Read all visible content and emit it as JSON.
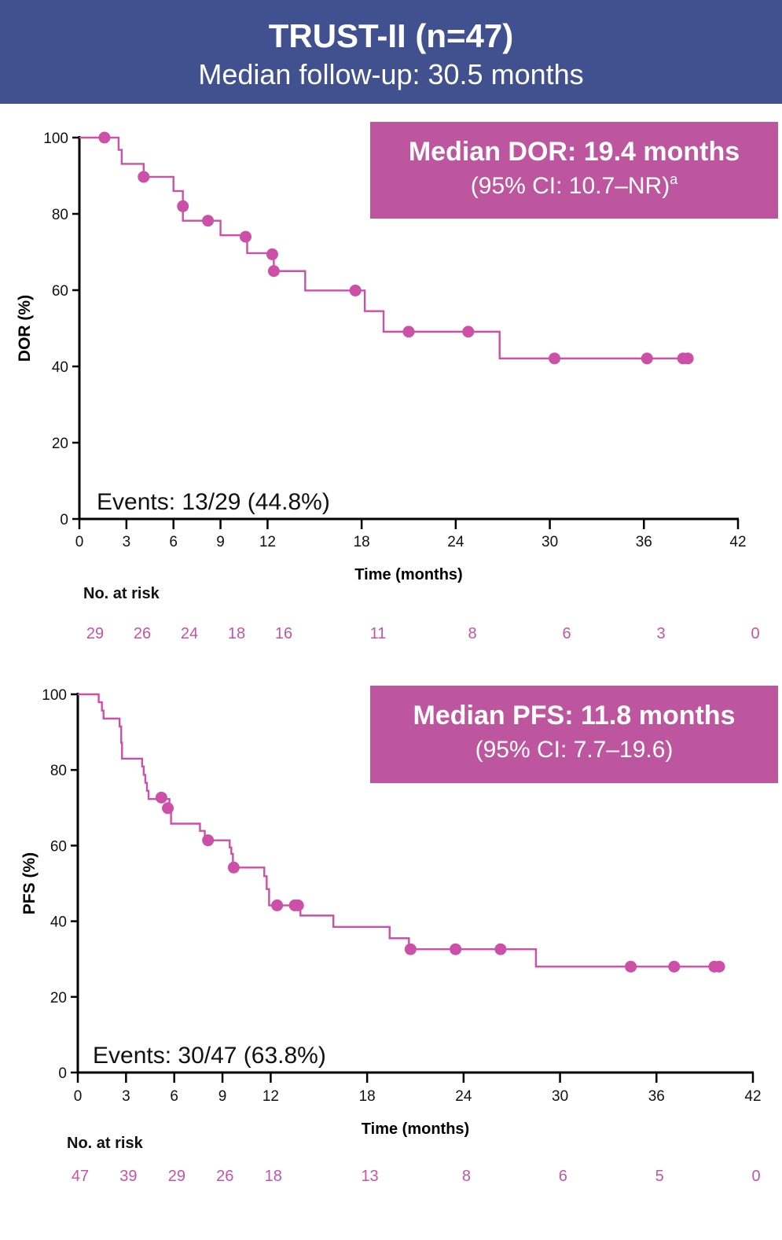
{
  "header": {
    "title": "TRUST-II (n=47)",
    "subtitle": "Median follow-up: 30.5 months"
  },
  "colors": {
    "header_bg": "#41518f",
    "curve": "#cc4fa8",
    "box_bg": "#bd559f",
    "risk_text": "#c354a8"
  },
  "chart_data": [
    {
      "type": "line",
      "subtype": "kaplan-meier",
      "name": "dor",
      "title": "Median DOR: 19.4 months",
      "subtitle": "(95% CI: 10.7–NR)",
      "subtitle_footnote": "a",
      "annotation": "Events: 13/29 (44.8%)",
      "xlabel": "Time (months)",
      "ylabel": "DOR (%)",
      "xlim": [
        0,
        42
      ],
      "ylim": [
        0,
        100
      ],
      "xticks": [
        0,
        3,
        6,
        9,
        12,
        18,
        24,
        30,
        36,
        42
      ],
      "yticks": [
        0,
        20,
        40,
        60,
        80,
        100
      ],
      "grid": false,
      "steps": [
        [
          0,
          100
        ],
        [
          2.5,
          96.8
        ],
        [
          2.7,
          93.1
        ],
        [
          4.1,
          89.7
        ],
        [
          6.0,
          86.0
        ],
        [
          6.6,
          78.2
        ],
        [
          9.0,
          74.4
        ],
        [
          10.7,
          69.7
        ],
        [
          12.4,
          65.0
        ],
        [
          14.4,
          59.9
        ],
        [
          18.2,
          54.5
        ],
        [
          19.4,
          49.1
        ],
        [
          26.8,
          42.1
        ],
        [
          38.8,
          42.1
        ]
      ],
      "censored": [
        [
          1.6,
          100
        ],
        [
          4.1,
          89.7
        ],
        [
          6.6,
          82.0
        ],
        [
          8.2,
          78.2
        ],
        [
          10.6,
          74.0
        ],
        [
          12.3,
          69.4
        ],
        [
          12.4,
          65.0
        ],
        [
          17.6,
          59.9
        ],
        [
          21.0,
          49.1
        ],
        [
          24.8,
          49.1
        ],
        [
          30.3,
          42.1
        ],
        [
          36.2,
          42.1
        ],
        [
          38.5,
          42.1
        ],
        [
          38.8,
          42.1
        ]
      ],
      "risk_table": {
        "label": "No. at risk",
        "times": [
          1,
          4,
          7,
          10,
          13,
          19,
          25,
          31,
          37,
          43
        ],
        "values": [
          29,
          26,
          24,
          18,
          16,
          11,
          8,
          6,
          3,
          0
        ]
      }
    },
    {
      "type": "line",
      "subtype": "kaplan-meier",
      "name": "pfs",
      "title": "Median PFS: 11.8 months",
      "subtitle": "(95% CI: 7.7–19.6)",
      "annotation": "Events: 30/47 (63.8%)",
      "xlabel": "Time (months)",
      "ylabel": "PFS (%)",
      "xlim": [
        0,
        42
      ],
      "ylim": [
        0,
        100
      ],
      "xticks": [
        0,
        3,
        6,
        9,
        12,
        18,
        24,
        30,
        36,
        42
      ],
      "yticks": [
        0,
        20,
        40,
        60,
        80,
        100
      ],
      "grid": false,
      "steps": [
        [
          0,
          100
        ],
        [
          1.3,
          97.9
        ],
        [
          1.5,
          95.7
        ],
        [
          1.6,
          93.6
        ],
        [
          2.6,
          91.5
        ],
        [
          2.7,
          87.2
        ],
        [
          2.75,
          83.0
        ],
        [
          4.0,
          80.9
        ],
        [
          4.1,
          78.7
        ],
        [
          4.2,
          76.6
        ],
        [
          4.3,
          74.5
        ],
        [
          4.4,
          72.3
        ],
        [
          5.7,
          69.9
        ],
        [
          5.8,
          65.8
        ],
        [
          7.6,
          63.9
        ],
        [
          7.9,
          61.4
        ],
        [
          9.45,
          59.5
        ],
        [
          9.55,
          57.8
        ],
        [
          9.65,
          54.2
        ],
        [
          11.6,
          51.9
        ],
        [
          11.75,
          48.5
        ],
        [
          11.9,
          44.2
        ],
        [
          13.85,
          41.5
        ],
        [
          15.9,
          38.5
        ],
        [
          19.4,
          35.5
        ],
        [
          20.6,
          32.6
        ],
        [
          28.5,
          28.0
        ],
        [
          40.0,
          28.0
        ]
      ],
      "censored": [
        [
          5.2,
          72.7
        ],
        [
          5.6,
          69.9
        ],
        [
          8.1,
          61.4
        ],
        [
          9.7,
          54.2
        ],
        [
          12.4,
          44.2
        ],
        [
          13.5,
          44.2
        ],
        [
          13.7,
          44.2
        ],
        [
          20.7,
          32.6
        ],
        [
          23.5,
          32.6
        ],
        [
          26.3,
          32.6
        ],
        [
          34.4,
          28.0
        ],
        [
          37.1,
          28.0
        ],
        [
          39.6,
          28.0
        ],
        [
          39.9,
          28.0
        ]
      ],
      "risk_table": {
        "label": "No. at risk",
        "times": [
          0,
          3,
          6,
          9,
          12,
          18,
          24,
          30,
          36,
          42
        ],
        "values": [
          47,
          39,
          29,
          26,
          18,
          13,
          8,
          6,
          5,
          0
        ]
      }
    }
  ]
}
